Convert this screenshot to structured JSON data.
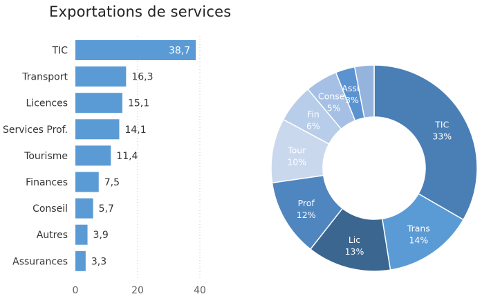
{
  "colors": {
    "bar": "#5b9bd5",
    "text": "#333333",
    "axis_text": "#605e5c",
    "grid": "#c8c6c4",
    "donut_label": "#ffffff"
  },
  "chart_data": [
    {
      "type": "bar",
      "orientation": "horizontal",
      "title": "Exportations de services",
      "categories": [
        "TIC",
        "Transport",
        "Licences",
        "Services Prof.",
        "Tourisme",
        "Finances",
        "Conseil",
        "Autres",
        "Assurances"
      ],
      "values": [
        38.7,
        16.3,
        15.1,
        14.1,
        11.4,
        7.5,
        5.7,
        3.9,
        3.3
      ],
      "value_labels": [
        "38,7",
        "16,3",
        "15,1",
        "14,1",
        "11,4",
        "7,5",
        "5,7",
        "3,9",
        "3,3"
      ],
      "xlim": [
        0,
        40
      ],
      "xticks": [
        0,
        20,
        40
      ],
      "xtick_labels": [
        "0",
        "20",
        "40"
      ],
      "grid": true
    },
    {
      "type": "pie",
      "variant": "donut",
      "slices": [
        {
          "label": "TIC",
          "pct": "33%",
          "value": 33,
          "color": "#4a7fb5"
        },
        {
          "label": "Trans",
          "pct": "14%",
          "value": 14,
          "color": "#5b9bd5"
        },
        {
          "label": "Lic",
          "pct": "13%",
          "value": 13,
          "color": "#3a6690"
        },
        {
          "label": "Prof",
          "pct": "12%",
          "value": 12,
          "color": "#4f86c0"
        },
        {
          "label": "Tour",
          "pct": "10%",
          "value": 10,
          "color": "#cad8ee"
        },
        {
          "label": "Fin",
          "pct": "6%",
          "value": 6,
          "color": "#b8cde9"
        },
        {
          "label": "Conseil",
          "pct": "5%",
          "value": 5,
          "color": "#a5c0e4"
        },
        {
          "label": "Assu",
          "pct": "3%",
          "value": 3,
          "color": "#5b93d0"
        },
        {
          "label": "",
          "pct": "",
          "value": 3,
          "color": "#94b4dd"
        }
      ]
    }
  ]
}
